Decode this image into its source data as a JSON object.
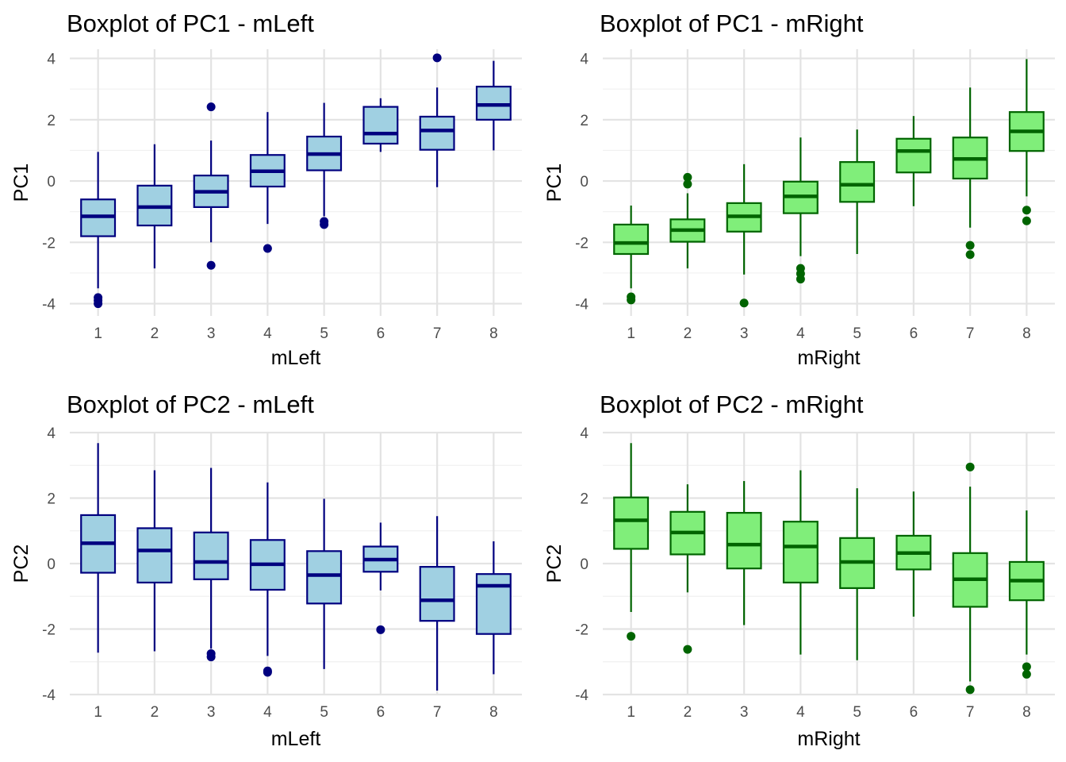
{
  "chart_data": [
    {
      "type": "boxplot",
      "title": "Boxplot of PC1 - mLeft",
      "xlabel": "mLeft",
      "ylabel": "PC1",
      "categories": [
        "1",
        "2",
        "3",
        "4",
        "5",
        "6",
        "7",
        "8"
      ],
      "ylim": [
        -4.4,
        4.3
      ],
      "yticks": [
        -4,
        -2,
        0,
        2,
        4
      ],
      "yticklabels": [
        "-4",
        "-2",
        "0",
        "2",
        "4"
      ],
      "fill": "#a0d0e2",
      "line": "#00007f",
      "boxes": [
        {
          "q1": -1.8,
          "median": -1.15,
          "q3": -0.6,
          "whisker_low": -3.5,
          "whisker_high": 0.95,
          "outliers": [
            -3.8,
            -3.9,
            -4.0
          ]
        },
        {
          "q1": -1.45,
          "median": -0.85,
          "q3": -0.15,
          "whisker_low": -2.85,
          "whisker_high": 1.2,
          "outliers": []
        },
        {
          "q1": -0.85,
          "median": -0.35,
          "q3": 0.18,
          "whisker_low": -2.0,
          "whisker_high": 1.32,
          "outliers": [
            2.42,
            -2.75
          ]
        },
        {
          "q1": -0.18,
          "median": 0.32,
          "q3": 0.85,
          "whisker_low": -1.4,
          "whisker_high": 2.25,
          "outliers": [
            -2.2
          ]
        },
        {
          "q1": 0.35,
          "median": 0.88,
          "q3": 1.45,
          "whisker_low": -1.15,
          "whisker_high": 2.55,
          "outliers": [
            -1.32,
            -1.42
          ]
        },
        {
          "q1": 1.22,
          "median": 1.55,
          "q3": 2.42,
          "whisker_low": 0.95,
          "whisker_high": 2.7,
          "outliers": []
        },
        {
          "q1": 1.02,
          "median": 1.65,
          "q3": 2.1,
          "whisker_low": -0.2,
          "whisker_high": 3.05,
          "outliers": [
            4.02
          ]
        },
        {
          "q1": 2.0,
          "median": 2.48,
          "q3": 3.08,
          "whisker_low": 1.0,
          "whisker_high": 3.92,
          "outliers": []
        }
      ]
    },
    {
      "type": "boxplot",
      "title": "Boxplot of PC1 - mRight",
      "xlabel": "mRight",
      "ylabel": "PC1",
      "categories": [
        "1",
        "2",
        "3",
        "4",
        "5",
        "6",
        "7",
        "8"
      ],
      "ylim": [
        -4.4,
        4.3
      ],
      "yticks": [
        -4,
        -2,
        0,
        2,
        4
      ],
      "yticklabels": [
        "-4",
        "-2",
        "0",
        "2",
        "4"
      ],
      "fill": "#80ee7a",
      "line": "#006400",
      "boxes": [
        {
          "q1": -2.38,
          "median": -2.02,
          "q3": -1.42,
          "whisker_low": -3.5,
          "whisker_high": -0.8,
          "outliers": [
            -3.78,
            -3.88
          ]
        },
        {
          "q1": -1.98,
          "median": -1.6,
          "q3": -1.25,
          "whisker_low": -2.85,
          "whisker_high": -0.4,
          "outliers": [
            0.12,
            -0.1
          ]
        },
        {
          "q1": -1.65,
          "median": -1.15,
          "q3": -0.72,
          "whisker_low": -3.05,
          "whisker_high": 0.55,
          "outliers": [
            -3.98
          ]
        },
        {
          "q1": -1.05,
          "median": -0.5,
          "q3": -0.02,
          "whisker_low": -2.45,
          "whisker_high": 1.42,
          "outliers": [
            -2.85,
            -3.02,
            -3.2
          ]
        },
        {
          "q1": -0.68,
          "median": -0.12,
          "q3": 0.62,
          "whisker_low": -2.38,
          "whisker_high": 1.68,
          "outliers": []
        },
        {
          "q1": 0.28,
          "median": 0.98,
          "q3": 1.38,
          "whisker_low": -0.82,
          "whisker_high": 2.12,
          "outliers": []
        },
        {
          "q1": 0.08,
          "median": 0.72,
          "q3": 1.42,
          "whisker_low": -1.52,
          "whisker_high": 3.05,
          "outliers": [
            -2.1,
            -2.4
          ]
        },
        {
          "q1": 0.98,
          "median": 1.62,
          "q3": 2.25,
          "whisker_low": -0.5,
          "whisker_high": 3.98,
          "outliers": [
            -0.95,
            -1.3
          ]
        }
      ]
    },
    {
      "type": "boxplot",
      "title": "Boxplot of PC2 - mLeft",
      "xlabel": "mLeft",
      "ylabel": "PC2",
      "categories": [
        "1",
        "2",
        "3",
        "4",
        "5",
        "6",
        "7",
        "8"
      ],
      "ylim": [
        -4.0,
        4.0
      ],
      "yticks": [
        -4,
        -2,
        0,
        2,
        4
      ],
      "yticklabels": [
        "-4",
        "-2",
        "0",
        "2",
        "4"
      ],
      "fill": "#a0d0e2",
      "line": "#00007f",
      "boxes": [
        {
          "q1": -0.28,
          "median": 0.62,
          "q3": 1.48,
          "whisker_low": -2.72,
          "whisker_high": 3.68,
          "outliers": []
        },
        {
          "q1": -0.58,
          "median": 0.4,
          "q3": 1.08,
          "whisker_low": -2.68,
          "whisker_high": 2.85,
          "outliers": []
        },
        {
          "q1": -0.48,
          "median": 0.05,
          "q3": 0.95,
          "whisker_low": -2.6,
          "whisker_high": 2.92,
          "outliers": [
            -2.75,
            -2.85
          ]
        },
        {
          "q1": -0.8,
          "median": -0.02,
          "q3": 0.72,
          "whisker_low": -2.82,
          "whisker_high": 2.48,
          "outliers": [
            -3.28,
            -3.32
          ]
        },
        {
          "q1": -1.22,
          "median": -0.35,
          "q3": 0.38,
          "whisker_low": -3.22,
          "whisker_high": 1.98,
          "outliers": []
        },
        {
          "q1": -0.25,
          "median": 0.12,
          "q3": 0.52,
          "whisker_low": -0.82,
          "whisker_high": 1.25,
          "outliers": [
            -2.02
          ]
        },
        {
          "q1": -1.75,
          "median": -1.12,
          "q3": -0.1,
          "whisker_low": -3.88,
          "whisker_high": 1.45,
          "outliers": []
        },
        {
          "q1": -2.15,
          "median": -0.68,
          "q3": -0.32,
          "whisker_low": -3.38,
          "whisker_high": 0.68,
          "outliers": []
        }
      ]
    },
    {
      "type": "boxplot",
      "title": "Boxplot of PC2 - mRight",
      "xlabel": "mRight",
      "ylabel": "PC2",
      "categories": [
        "1",
        "2",
        "3",
        "4",
        "5",
        "6",
        "7",
        "8"
      ],
      "ylim": [
        -4.0,
        4.0
      ],
      "yticks": [
        -4,
        -2,
        0,
        2,
        4
      ],
      "yticklabels": [
        "-4",
        "-2",
        "0",
        "2",
        "4"
      ],
      "fill": "#80ee7a",
      "line": "#006400",
      "boxes": [
        {
          "q1": 0.45,
          "median": 1.32,
          "q3": 2.02,
          "whisker_low": -1.48,
          "whisker_high": 3.68,
          "outliers": [
            -2.22
          ]
        },
        {
          "q1": 0.28,
          "median": 0.95,
          "q3": 1.58,
          "whisker_low": -0.88,
          "whisker_high": 2.42,
          "outliers": [
            -2.62
          ]
        },
        {
          "q1": -0.15,
          "median": 0.58,
          "q3": 1.55,
          "whisker_low": -1.88,
          "whisker_high": 2.52,
          "outliers": []
        },
        {
          "q1": -0.58,
          "median": 0.52,
          "q3": 1.28,
          "whisker_low": -2.78,
          "whisker_high": 2.85,
          "outliers": []
        },
        {
          "q1": -0.75,
          "median": 0.05,
          "q3": 0.78,
          "whisker_low": -2.95,
          "whisker_high": 2.3,
          "outliers": []
        },
        {
          "q1": -0.18,
          "median": 0.32,
          "q3": 0.85,
          "whisker_low": -1.62,
          "whisker_high": 2.2,
          "outliers": []
        },
        {
          "q1": -1.32,
          "median": -0.48,
          "q3": 0.32,
          "whisker_low": -3.6,
          "whisker_high": 2.35,
          "outliers": [
            2.95,
            -3.85
          ]
        },
        {
          "q1": -1.12,
          "median": -0.52,
          "q3": 0.05,
          "whisker_low": -2.78,
          "whisker_high": 1.62,
          "outliers": [
            -3.15,
            -3.38
          ]
        }
      ]
    }
  ]
}
